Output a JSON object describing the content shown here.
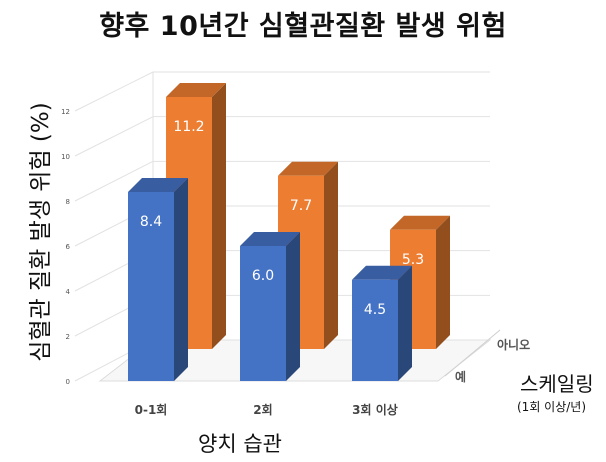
{
  "chart_data": {
    "type": "bar",
    "style": "3d-clustered",
    "title": "향후 10년간 심혈관질환 발생 위험",
    "xlabel": "양치 습관",
    "ylabel": "심혈관 질환 발생 위험 (%)",
    "zlabel": "스케일링",
    "zlabel_note": "(1회 이상/년)",
    "categories": [
      "0-1회",
      "2회",
      "3회 이상"
    ],
    "ylim": [
      0,
      12
    ],
    "yticks": [
      "0",
      "2",
      "4",
      "6",
      "8",
      "10",
      "12"
    ],
    "grid": true,
    "series": [
      {
        "name": "예",
        "values": [
          8.4,
          6.0,
          4.5
        ],
        "labels": [
          "8.4",
          "6.0",
          "4.5"
        ],
        "color": "#4472c4"
      },
      {
        "name": "아니오",
        "values": [
          11.2,
          7.7,
          5.3
        ],
        "labels": [
          "11.2",
          "7.7",
          "5.3"
        ],
        "color": "#ed7d31"
      }
    ]
  }
}
